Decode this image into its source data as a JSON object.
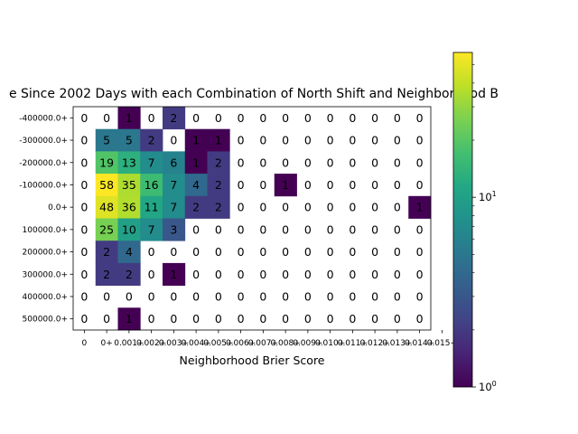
{
  "chart_data": {
    "type": "heatmap",
    "title": "e Since 2002 Days with each Combination of North Shift and Neighborhood B",
    "xlabel": "Neighborhood Brier Score",
    "ylabel": "",
    "x_ticks": [
      "0",
      "0+",
      "0.001+",
      "0.002+",
      "0.003+",
      "0.004+",
      "0.005+",
      "0.006+",
      "0.007+",
      "0.008+",
      "0.009+",
      "0.010+",
      "0.011+",
      "0.012+",
      "0.013+",
      "0.014+",
      "0.015+"
    ],
    "y_ticks": [
      "-400000.0+",
      "-300000.0+",
      "-200000.0+",
      "-100000.0+",
      "0.0+",
      "100000.0+",
      "200000.0+",
      "300000.0+",
      "400000.0+",
      "500000.0+"
    ],
    "values": [
      [
        0,
        0,
        1,
        0,
        2,
        0,
        0,
        0,
        0,
        0,
        0,
        0,
        0,
        0,
        0,
        0
      ],
      [
        0,
        5,
        5,
        2,
        0,
        1,
        1,
        0,
        0,
        0,
        0,
        0,
        0,
        0,
        0,
        0
      ],
      [
        0,
        19,
        13,
        7,
        6,
        1,
        2,
        0,
        0,
        0,
        0,
        0,
        0,
        0,
        0,
        0
      ],
      [
        0,
        58,
        35,
        16,
        7,
        4,
        2,
        0,
        0,
        1,
        0,
        0,
        0,
        0,
        0,
        0
      ],
      [
        0,
        48,
        36,
        11,
        7,
        2,
        2,
        0,
        0,
        0,
        0,
        0,
        0,
        0,
        0,
        1
      ],
      [
        0,
        25,
        10,
        7,
        3,
        0,
        0,
        0,
        0,
        0,
        0,
        0,
        0,
        0,
        0,
        0
      ],
      [
        0,
        2,
        4,
        0,
        0,
        0,
        0,
        0,
        0,
        0,
        0,
        0,
        0,
        0,
        0,
        0
      ],
      [
        0,
        2,
        2,
        0,
        1,
        0,
        0,
        0,
        0,
        0,
        0,
        0,
        0,
        0,
        0,
        0
      ],
      [
        0,
        0,
        0,
        0,
        0,
        0,
        0,
        0,
        0,
        0,
        0,
        0,
        0,
        0,
        0,
        0
      ],
      [
        0,
        0,
        1,
        0,
        0,
        0,
        0,
        0,
        0,
        0,
        0,
        0,
        0,
        0,
        0,
        0
      ]
    ],
    "color_scale": "log",
    "colormap": "viridis",
    "colorbar_range": [
      1,
      58
    ],
    "colorbar_ticks": [
      {
        "value": 1,
        "label": "10",
        "exp": "0"
      },
      {
        "value": 10,
        "label": "10",
        "exp": "1"
      }
    ]
  }
}
